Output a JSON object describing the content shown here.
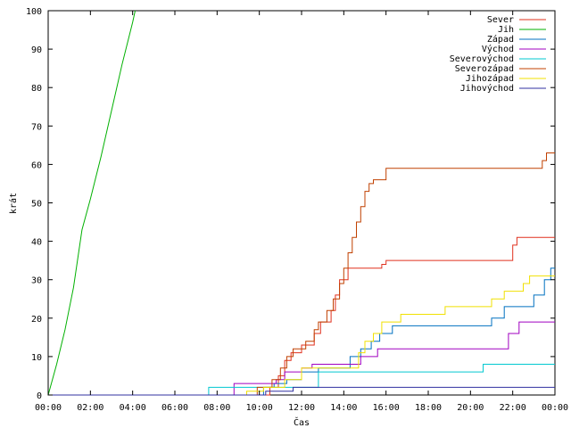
{
  "chart_data": {
    "type": "line",
    "title": "",
    "xlabel": "Čas",
    "ylabel": "krát",
    "xlim": [
      0,
      24
    ],
    "ylim": [
      0,
      100
    ],
    "x_ticks": [
      "00:00",
      "02:00",
      "04:00",
      "06:00",
      "08:00",
      "10:00",
      "12:00",
      "14:00",
      "16:00",
      "18:00",
      "20:00",
      "22:00",
      "00:00"
    ],
    "y_ticks": [
      0,
      10,
      20,
      30,
      40,
      50,
      60,
      70,
      80,
      90,
      100
    ],
    "grid": false,
    "legend_position": "top-right",
    "series": [
      {
        "name": "Sever",
        "color": "#e0301e",
        "points": [
          [
            0,
            0
          ],
          [
            10.5,
            0
          ],
          [
            10.5,
            2
          ],
          [
            10.9,
            2
          ],
          [
            10.9,
            5
          ],
          [
            11.2,
            5
          ],
          [
            11.2,
            9
          ],
          [
            11.5,
            9
          ],
          [
            11.5,
            11
          ],
          [
            12.0,
            11
          ],
          [
            12.0,
            13
          ],
          [
            12.6,
            13
          ],
          [
            12.6,
            16
          ],
          [
            12.9,
            16
          ],
          [
            12.9,
            19
          ],
          [
            13.4,
            19
          ],
          [
            13.4,
            22
          ],
          [
            13.6,
            22
          ],
          [
            13.6,
            26
          ],
          [
            13.8,
            26
          ],
          [
            13.8,
            30
          ],
          [
            14.2,
            30
          ],
          [
            14.2,
            33
          ],
          [
            15.8,
            33
          ],
          [
            15.8,
            34
          ],
          [
            16.0,
            34
          ],
          [
            16.0,
            35
          ],
          [
            22.0,
            35
          ],
          [
            22.0,
            39
          ],
          [
            22.2,
            39
          ],
          [
            22.2,
            41
          ],
          [
            24,
            41
          ]
        ]
      },
      {
        "name": "Jih",
        "color": "#00b000",
        "points": [
          [
            0,
            0
          ],
          [
            0.4,
            8
          ],
          [
            0.8,
            17
          ],
          [
            1.2,
            28
          ],
          [
            1.6,
            43
          ],
          [
            2.0,
            51
          ],
          [
            2.5,
            62
          ],
          [
            3.0,
            74
          ],
          [
            3.5,
            86
          ],
          [
            4.0,
            97
          ],
          [
            4.12,
            100
          ]
        ]
      },
      {
        "name": "Západ",
        "color": "#0070c0",
        "points": [
          [
            0,
            0
          ],
          [
            10.2,
            0
          ],
          [
            10.2,
            2
          ],
          [
            10.7,
            2
          ],
          [
            10.7,
            3
          ],
          [
            11.3,
            3
          ],
          [
            11.3,
            4
          ],
          [
            12.0,
            4
          ],
          [
            12.0,
            6
          ],
          [
            12.8,
            6
          ],
          [
            12.8,
            7
          ],
          [
            14.3,
            7
          ],
          [
            14.3,
            10
          ],
          [
            14.8,
            10
          ],
          [
            14.8,
            12
          ],
          [
            15.3,
            12
          ],
          [
            15.3,
            14
          ],
          [
            15.7,
            14
          ],
          [
            15.7,
            16
          ],
          [
            16.3,
            16
          ],
          [
            16.3,
            18
          ],
          [
            21.0,
            18
          ],
          [
            21.0,
            20
          ],
          [
            21.6,
            20
          ],
          [
            21.6,
            23
          ],
          [
            23.0,
            23
          ],
          [
            23.0,
            26
          ],
          [
            23.5,
            26
          ],
          [
            23.5,
            30
          ],
          [
            23.8,
            30
          ],
          [
            23.8,
            33
          ],
          [
            24,
            33
          ]
        ]
      },
      {
        "name": "Východ",
        "color": "#a000c0",
        "points": [
          [
            0,
            0
          ],
          [
            8.8,
            0
          ],
          [
            8.8,
            3
          ],
          [
            10.8,
            3
          ],
          [
            10.8,
            4
          ],
          [
            11.2,
            4
          ],
          [
            11.2,
            6
          ],
          [
            12.0,
            6
          ],
          [
            12.0,
            7
          ],
          [
            12.5,
            7
          ],
          [
            12.5,
            8
          ],
          [
            14.8,
            8
          ],
          [
            14.8,
            10
          ],
          [
            15.6,
            10
          ],
          [
            15.6,
            12
          ],
          [
            21.8,
            12
          ],
          [
            21.8,
            16
          ],
          [
            22.3,
            16
          ],
          [
            22.3,
            19
          ],
          [
            24,
            19
          ]
        ]
      },
      {
        "name": "Severovýchod",
        "color": "#00c8d0",
        "points": [
          [
            0,
            0
          ],
          [
            7.6,
            0
          ],
          [
            7.6,
            2
          ],
          [
            12.8,
            2
          ],
          [
            12.8,
            6
          ],
          [
            20.6,
            6
          ],
          [
            20.6,
            8
          ],
          [
            24,
            8
          ]
        ]
      },
      {
        "name": "Severozápad",
        "color": "#c04000",
        "points": [
          [
            0,
            0
          ],
          [
            9.9,
            0
          ],
          [
            9.9,
            2
          ],
          [
            10.6,
            2
          ],
          [
            10.6,
            4
          ],
          [
            11.0,
            4
          ],
          [
            11.0,
            7
          ],
          [
            11.3,
            7
          ],
          [
            11.3,
            10
          ],
          [
            11.6,
            10
          ],
          [
            11.6,
            12
          ],
          [
            12.2,
            12
          ],
          [
            12.2,
            14
          ],
          [
            12.6,
            14
          ],
          [
            12.6,
            17
          ],
          [
            12.8,
            17
          ],
          [
            12.8,
            19
          ],
          [
            13.2,
            19
          ],
          [
            13.2,
            22
          ],
          [
            13.5,
            22
          ],
          [
            13.5,
            25
          ],
          [
            13.8,
            25
          ],
          [
            13.8,
            29
          ],
          [
            14.0,
            29
          ],
          [
            14.0,
            33
          ],
          [
            14.2,
            33
          ],
          [
            14.2,
            37
          ],
          [
            14.4,
            37
          ],
          [
            14.4,
            41
          ],
          [
            14.6,
            41
          ],
          [
            14.6,
            45
          ],
          [
            14.8,
            45
          ],
          [
            14.8,
            49
          ],
          [
            15.0,
            49
          ],
          [
            15.0,
            53
          ],
          [
            15.2,
            53
          ],
          [
            15.2,
            55
          ],
          [
            15.4,
            55
          ],
          [
            15.4,
            56
          ],
          [
            16.0,
            56
          ],
          [
            16.0,
            59
          ],
          [
            23.4,
            59
          ],
          [
            23.4,
            61
          ],
          [
            23.6,
            61
          ],
          [
            23.6,
            63
          ],
          [
            24,
            63
          ]
        ]
      },
      {
        "name": "Jihozápad",
        "color": "#f0e000",
        "points": [
          [
            0,
            0
          ],
          [
            9.4,
            0
          ],
          [
            9.4,
            1
          ],
          [
            10.2,
            1
          ],
          [
            10.2,
            2
          ],
          [
            11.2,
            2
          ],
          [
            11.2,
            4
          ],
          [
            12.0,
            4
          ],
          [
            12.0,
            7
          ],
          [
            14.7,
            7
          ],
          [
            14.7,
            11
          ],
          [
            15.0,
            11
          ],
          [
            15.0,
            14
          ],
          [
            15.4,
            14
          ],
          [
            15.4,
            16
          ],
          [
            15.8,
            16
          ],
          [
            15.8,
            19
          ],
          [
            16.7,
            19
          ],
          [
            16.7,
            21
          ],
          [
            18.8,
            21
          ],
          [
            18.8,
            23
          ],
          [
            21.0,
            23
          ],
          [
            21.0,
            25
          ],
          [
            21.6,
            25
          ],
          [
            21.6,
            27
          ],
          [
            22.5,
            27
          ],
          [
            22.5,
            29
          ],
          [
            22.8,
            29
          ],
          [
            22.8,
            31
          ],
          [
            24,
            31
          ]
        ]
      },
      {
        "name": "Jihovýchod",
        "color": "#3030a0",
        "points": [
          [
            0,
            0
          ],
          [
            10.3,
            0
          ],
          [
            10.3,
            1
          ],
          [
            11.6,
            1
          ],
          [
            11.6,
            2
          ],
          [
            24,
            2
          ]
        ]
      }
    ]
  }
}
